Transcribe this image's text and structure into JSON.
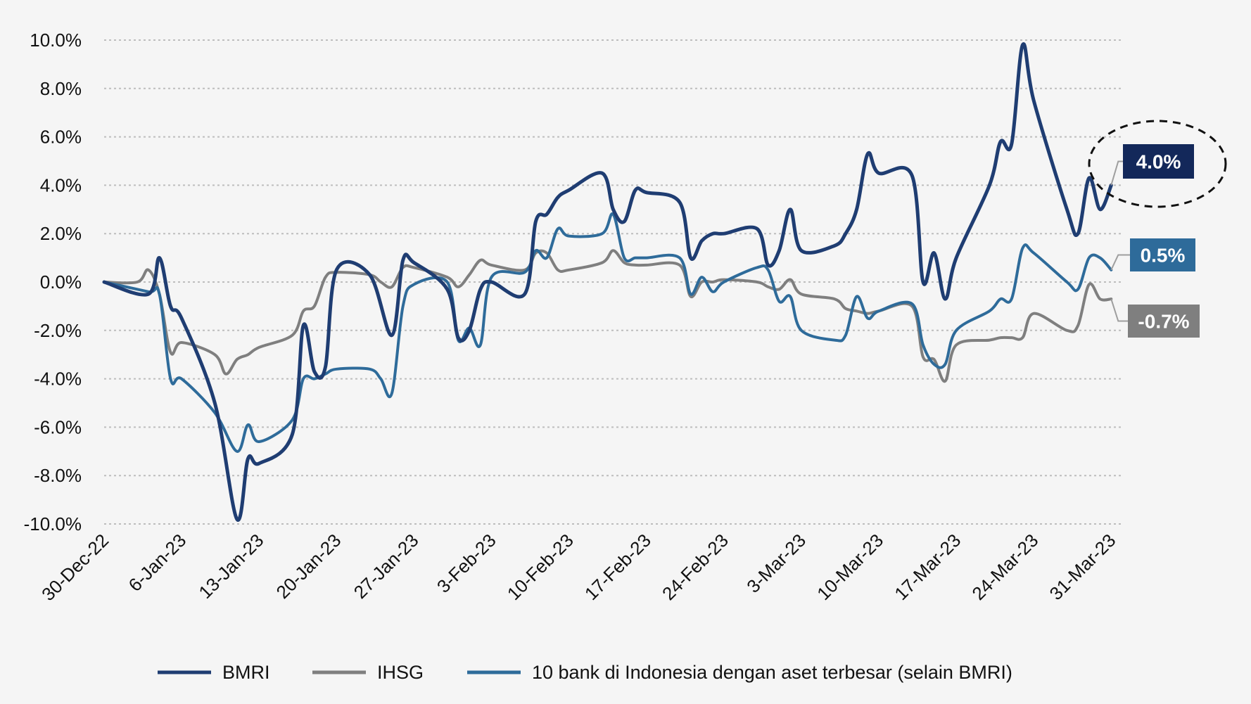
{
  "chart_data": {
    "type": "line",
    "y_tick_labels": [
      "10.0%",
      "8.0%",
      "6.0%",
      "4.0%",
      "2.0%",
      "0.0%",
      "-2.0%",
      "-4.0%",
      "-6.0%",
      "-8.0%",
      "-10.0%"
    ],
    "ylim": [
      -10,
      10
    ],
    "grid": true,
    "x_tick_labels": [
      "30-Dec-22",
      "6-Jan-23",
      "13-Jan-23",
      "20-Jan-23",
      "27-Jan-23",
      "3-Feb-23",
      "10-Feb-23",
      "17-Feb-23",
      "24-Feb-23",
      "3-Mar-23",
      "10-Mar-23",
      "17-Mar-23",
      "24-Mar-23",
      "31-Mar-23"
    ],
    "x_ticks": [
      "2022-12-30",
      "2023-01-06",
      "2023-01-13",
      "2023-01-20",
      "2023-01-27",
      "2023-02-03",
      "2023-02-10",
      "2023-02-17",
      "2023-02-24",
      "2023-03-03",
      "2023-03-10",
      "2023-03-17",
      "2023-03-24",
      "2023-03-31"
    ],
    "xlim": [
      "2022-12-30",
      "2023-04-01"
    ],
    "legend_position": "bottom",
    "series": [
      {
        "name": "BMRI",
        "color": "#1f3d72",
        "end_label": "4.0%",
        "points": [
          [
            "2022-12-30",
            0.0
          ],
          [
            "2023-01-03",
            -0.5
          ],
          [
            "2023-01-04",
            1.0
          ],
          [
            "2023-01-05",
            -1.0
          ],
          [
            "2023-01-06",
            -1.5
          ],
          [
            "2023-01-09",
            -5.0
          ],
          [
            "2023-01-11",
            -9.8
          ],
          [
            "2023-01-12",
            -7.3
          ],
          [
            "2023-01-13",
            -7.5
          ],
          [
            "2023-01-16",
            -6.3
          ],
          [
            "2023-01-17",
            -1.8
          ],
          [
            "2023-01-18",
            -3.7
          ],
          [
            "2023-01-19",
            -3.5
          ],
          [
            "2023-01-20",
            0.5
          ],
          [
            "2023-01-23",
            0.3
          ],
          [
            "2023-01-25",
            -2.2
          ],
          [
            "2023-01-26",
            0.9
          ],
          [
            "2023-01-27",
            0.8
          ],
          [
            "2023-01-30",
            -0.3
          ],
          [
            "2023-01-31",
            -2.3
          ],
          [
            "2023-02-01",
            -2.0
          ],
          [
            "2023-02-02",
            -0.3
          ],
          [
            "2023-02-03",
            0.0
          ],
          [
            "2023-02-06",
            -0.5
          ],
          [
            "2023-02-07",
            2.5
          ],
          [
            "2023-02-08",
            2.8
          ],
          [
            "2023-02-09",
            3.5
          ],
          [
            "2023-02-10",
            3.8
          ],
          [
            "2023-02-13",
            4.5
          ],
          [
            "2023-02-14",
            3.0
          ],
          [
            "2023-02-15",
            2.5
          ],
          [
            "2023-02-16",
            3.8
          ],
          [
            "2023-02-17",
            3.7
          ],
          [
            "2023-02-20",
            3.3
          ],
          [
            "2023-02-21",
            1.0
          ],
          [
            "2023-02-22",
            1.7
          ],
          [
            "2023-02-23",
            2.0
          ],
          [
            "2023-02-24",
            2.0
          ],
          [
            "2023-02-27",
            2.2
          ],
          [
            "2023-02-28",
            0.7
          ],
          [
            "2023-03-01",
            1.3
          ],
          [
            "2023-03-02",
            3.0
          ],
          [
            "2023-03-03",
            1.3
          ],
          [
            "2023-03-06",
            1.5
          ],
          [
            "2023-03-07",
            2.0
          ],
          [
            "2023-03-08",
            3.0
          ],
          [
            "2023-03-09",
            5.3
          ],
          [
            "2023-03-10",
            4.5
          ],
          [
            "2023-03-13",
            4.4
          ],
          [
            "2023-03-14",
            0.0
          ],
          [
            "2023-03-15",
            1.2
          ],
          [
            "2023-03-16",
            -0.7
          ],
          [
            "2023-03-17",
            1.0
          ],
          [
            "2023-03-20",
            4.0
          ],
          [
            "2023-03-21",
            5.8
          ],
          [
            "2023-03-22",
            5.7
          ],
          [
            "2023-03-23",
            9.8
          ],
          [
            "2023-03-24",
            7.5
          ],
          [
            "2023-03-27",
            3.0
          ],
          [
            "2023-03-28",
            2.0
          ],
          [
            "2023-03-29",
            4.3
          ],
          [
            "2023-03-30",
            3.0
          ],
          [
            "2023-03-31",
            4.0
          ]
        ]
      },
      {
        "name": "IHSG",
        "color": "#7f7f7f",
        "end_label": "-0.7%",
        "points": [
          [
            "2022-12-30",
            0.0
          ],
          [
            "2023-01-02",
            0.0
          ],
          [
            "2023-01-03",
            0.5
          ],
          [
            "2023-01-04",
            -0.5
          ],
          [
            "2023-01-05",
            -2.9
          ],
          [
            "2023-01-06",
            -2.5
          ],
          [
            "2023-01-09",
            -3.0
          ],
          [
            "2023-01-10",
            -3.8
          ],
          [
            "2023-01-11",
            -3.2
          ],
          [
            "2023-01-12",
            -3.0
          ],
          [
            "2023-01-13",
            -2.7
          ],
          [
            "2023-01-16",
            -2.2
          ],
          [
            "2023-01-17",
            -1.2
          ],
          [
            "2023-01-18",
            -1.0
          ],
          [
            "2023-01-19",
            0.2
          ],
          [
            "2023-01-20",
            0.4
          ],
          [
            "2023-01-23",
            0.3
          ],
          [
            "2023-01-24",
            0.0
          ],
          [
            "2023-01-25",
            -0.2
          ],
          [
            "2023-01-26",
            0.6
          ],
          [
            "2023-01-27",
            0.6
          ],
          [
            "2023-01-30",
            0.2
          ],
          [
            "2023-01-31",
            -0.2
          ],
          [
            "2023-02-01",
            0.3
          ],
          [
            "2023-02-02",
            0.9
          ],
          [
            "2023-02-03",
            0.7
          ],
          [
            "2023-02-06",
            0.5
          ],
          [
            "2023-02-07",
            1.2
          ],
          [
            "2023-02-08",
            1.2
          ],
          [
            "2023-02-09",
            0.5
          ],
          [
            "2023-02-10",
            0.5
          ],
          [
            "2023-02-13",
            0.8
          ],
          [
            "2023-02-14",
            1.3
          ],
          [
            "2023-02-15",
            0.8
          ],
          [
            "2023-02-16",
            0.7
          ],
          [
            "2023-02-17",
            0.7
          ],
          [
            "2023-02-20",
            0.7
          ],
          [
            "2023-02-21",
            -0.6
          ],
          [
            "2023-02-22",
            0.0
          ],
          [
            "2023-02-23",
            0.0
          ],
          [
            "2023-02-24",
            0.1
          ],
          [
            "2023-02-27",
            0.0
          ],
          [
            "2023-02-28",
            -0.2
          ],
          [
            "2023-03-01",
            -0.3
          ],
          [
            "2023-03-02",
            0.1
          ],
          [
            "2023-03-03",
            -0.5
          ],
          [
            "2023-03-06",
            -0.7
          ],
          [
            "2023-03-07",
            -1.1
          ],
          [
            "2023-03-08",
            -1.2
          ],
          [
            "2023-03-09",
            -1.3
          ],
          [
            "2023-03-10",
            -1.2
          ],
          [
            "2023-03-13",
            -1.0
          ],
          [
            "2023-03-14",
            -3.1
          ],
          [
            "2023-03-15",
            -3.2
          ],
          [
            "2023-03-16",
            -4.1
          ],
          [
            "2023-03-17",
            -2.6
          ],
          [
            "2023-03-20",
            -2.4
          ],
          [
            "2023-03-21",
            -2.3
          ],
          [
            "2023-03-22",
            -2.3
          ],
          [
            "2023-03-23",
            -2.3
          ],
          [
            "2023-03-24",
            -1.3
          ],
          [
            "2023-03-27",
            -2.0
          ],
          [
            "2023-03-28",
            -1.8
          ],
          [
            "2023-03-29",
            -0.1
          ],
          [
            "2023-03-30",
            -0.7
          ],
          [
            "2023-03-31",
            -0.7
          ]
        ]
      },
      {
        "name": "10 bank di Indonesia dengan aset terbesar (selain BMRI)",
        "color": "#2e6b9a",
        "end_label": "0.5%",
        "points": [
          [
            "2022-12-30",
            0.0
          ],
          [
            "2023-01-03",
            -0.4
          ],
          [
            "2023-01-04",
            -0.5
          ],
          [
            "2023-01-05",
            -4.0
          ],
          [
            "2023-01-06",
            -4.0
          ],
          [
            "2023-01-09",
            -5.4
          ],
          [
            "2023-01-11",
            -7.0
          ],
          [
            "2023-01-12",
            -5.9
          ],
          [
            "2023-01-13",
            -6.6
          ],
          [
            "2023-01-16",
            -5.7
          ],
          [
            "2023-01-17",
            -4.0
          ],
          [
            "2023-01-18",
            -4.0
          ],
          [
            "2023-01-19",
            -3.8
          ],
          [
            "2023-01-20",
            -3.6
          ],
          [
            "2023-01-23",
            -3.6
          ],
          [
            "2023-01-24",
            -4.0
          ],
          [
            "2023-01-25",
            -4.6
          ],
          [
            "2023-01-26",
            -1.0
          ],
          [
            "2023-01-27",
            -0.1
          ],
          [
            "2023-01-30",
            0.0
          ],
          [
            "2023-01-31",
            -2.4
          ],
          [
            "2023-02-01",
            -1.9
          ],
          [
            "2023-02-02",
            -2.6
          ],
          [
            "2023-02-03",
            0.2
          ],
          [
            "2023-02-06",
            0.4
          ],
          [
            "2023-02-07",
            1.3
          ],
          [
            "2023-02-08",
            1.0
          ],
          [
            "2023-02-09",
            2.2
          ],
          [
            "2023-02-10",
            1.9
          ],
          [
            "2023-02-13",
            2.0
          ],
          [
            "2023-02-14",
            2.8
          ],
          [
            "2023-02-15",
            1.0
          ],
          [
            "2023-02-16",
            1.0
          ],
          [
            "2023-02-17",
            1.0
          ],
          [
            "2023-02-20",
            1.0
          ],
          [
            "2023-02-21",
            -0.5
          ],
          [
            "2023-02-22",
            0.2
          ],
          [
            "2023-02-23",
            -0.4
          ],
          [
            "2023-02-24",
            0.0
          ],
          [
            "2023-02-27",
            0.6
          ],
          [
            "2023-02-28",
            0.5
          ],
          [
            "2023-03-01",
            -0.8
          ],
          [
            "2023-03-02",
            -0.6
          ],
          [
            "2023-03-03",
            -2.0
          ],
          [
            "2023-03-06",
            -2.4
          ],
          [
            "2023-03-07",
            -2.2
          ],
          [
            "2023-03-08",
            -0.6
          ],
          [
            "2023-03-09",
            -1.5
          ],
          [
            "2023-03-10",
            -1.2
          ],
          [
            "2023-03-13",
            -0.9
          ],
          [
            "2023-03-14",
            -2.6
          ],
          [
            "2023-03-15",
            -3.4
          ],
          [
            "2023-03-16",
            -3.4
          ],
          [
            "2023-03-17",
            -2.0
          ],
          [
            "2023-03-20",
            -1.2
          ],
          [
            "2023-03-21",
            -0.7
          ],
          [
            "2023-03-22",
            -0.7
          ],
          [
            "2023-03-23",
            1.4
          ],
          [
            "2023-03-24",
            1.2
          ],
          [
            "2023-03-27",
            0.0
          ],
          [
            "2023-03-28",
            -0.3
          ],
          [
            "2023-03-29",
            1.0
          ],
          [
            "2023-03-30",
            1.0
          ],
          [
            "2023-03-31",
            0.5
          ]
        ]
      }
    ],
    "highlight": "dashed ellipse around BMRI end value"
  }
}
